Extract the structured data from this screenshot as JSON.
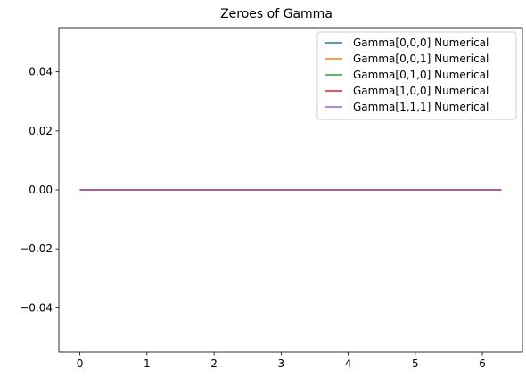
{
  "chart_data": {
    "type": "line",
    "title": "Zeroes of Gamma",
    "xlabel": "",
    "ylabel": "",
    "xlim": [
      -0.314,
      6.597
    ],
    "ylim": [
      -0.055,
      0.055
    ],
    "x_ticks": [
      0,
      1,
      2,
      3,
      4,
      5,
      6
    ],
    "x_tick_labels": [
      "0",
      "1",
      "2",
      "3",
      "4",
      "5",
      "6"
    ],
    "y_ticks": [
      -0.04,
      -0.02,
      0.0,
      0.02,
      0.04
    ],
    "y_tick_labels": [
      "−0.04",
      "−0.02",
      "0.00",
      "0.02",
      "0.04"
    ],
    "grid": false,
    "legend_position": "top-right",
    "series": [
      {
        "name": "Gamma[0,0,0] Numerical",
        "color": "#1f77b4",
        "x": [
          0,
          6.283
        ],
        "y": [
          0,
          0
        ]
      },
      {
        "name": "Gamma[0,0,1] Numerical",
        "color": "#ff7f0e",
        "x": [
          0,
          6.283
        ],
        "y": [
          0,
          0
        ]
      },
      {
        "name": "Gamma[0,1,0] Numerical",
        "color": "#2ca02c",
        "x": [
          0,
          6.283
        ],
        "y": [
          0,
          0
        ]
      },
      {
        "name": "Gamma[1,0,0] Numerical",
        "color": "#d62728",
        "x": [
          0,
          6.283
        ],
        "y": [
          0,
          0
        ]
      },
      {
        "name": "Gamma[1,1,1] Numerical",
        "color": "#9467bd",
        "x": [
          0,
          6.283
        ],
        "y": [
          0,
          0
        ]
      }
    ]
  }
}
